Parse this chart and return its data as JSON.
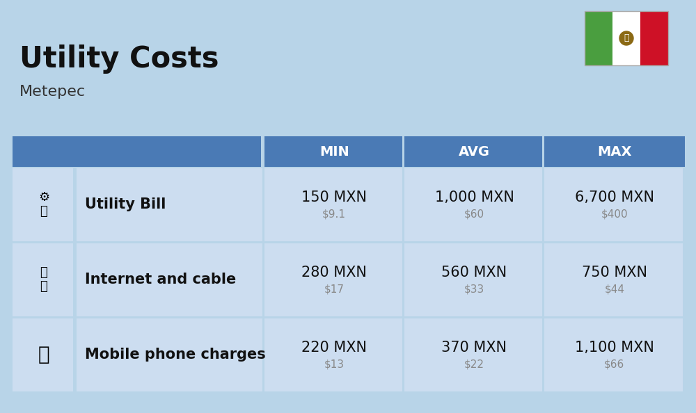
{
  "title": "Utility Costs",
  "subtitle": "Metepec",
  "background_color": "#b8d4e8",
  "header_color": "#4a7ab5",
  "header_text_color": "#ffffff",
  "row_color": "#ccddf0",
  "separator_color": "#ffffff",
  "col_headers": [
    "MIN",
    "AVG",
    "MAX"
  ],
  "rows": [
    {
      "label": "Utility Bill",
      "min_mxn": "150 MXN",
      "min_usd": "$9.1",
      "avg_mxn": "1,000 MXN",
      "avg_usd": "$60",
      "max_mxn": "6,700 MXN",
      "max_usd": "$400"
    },
    {
      "label": "Internet and cable",
      "min_mxn": "280 MXN",
      "min_usd": "$17",
      "avg_mxn": "560 MXN",
      "avg_usd": "$33",
      "max_mxn": "750 MXN",
      "max_usd": "$44"
    },
    {
      "label": "Mobile phone charges",
      "min_mxn": "220 MXN",
      "min_usd": "$13",
      "avg_mxn": "370 MXN",
      "avg_usd": "$22",
      "max_mxn": "1,100 MXN",
      "max_usd": "$66"
    }
  ],
  "title_fontsize": 30,
  "subtitle_fontsize": 16,
  "header_fontsize": 14,
  "cell_main_fontsize": 15,
  "cell_sub_fontsize": 11,
  "label_fontsize": 15,
  "flag_green": "#4a9e3f",
  "flag_white": "#ffffff",
  "flag_red": "#ce1126"
}
